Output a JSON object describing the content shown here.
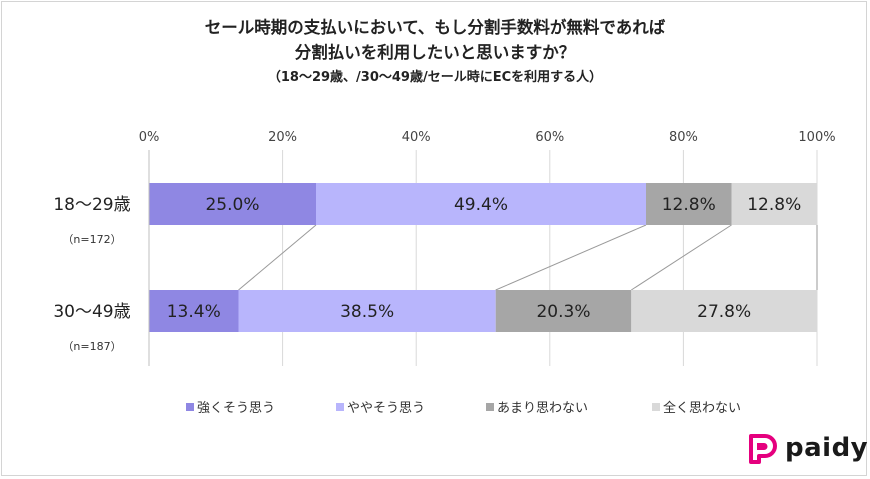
{
  "title": {
    "line1": "セール時期の支払いにおいて、もし分割手数料が無料であれば",
    "line2": "分割払いを利用したいと思いますか？",
    "line3": "（18～29歳、/30～49歳/セール時にECを利用する人）"
  },
  "chart_data": {
    "type": "bar",
    "orientation": "horizontal-stacked-100",
    "xlim": [
      0,
      100
    ],
    "x_ticks": [
      "0%",
      "20%",
      "40%",
      "60%",
      "80%",
      "100%"
    ],
    "categories": [
      {
        "label": "18～29歳",
        "n": "（n=172）"
      },
      {
        "label": "30～49歳",
        "n": "（n=187）"
      }
    ],
    "series": [
      {
        "name": "強くそう思う",
        "color": "#8f87e3",
        "values": [
          25.0,
          13.4
        ],
        "labels": [
          "25.0%",
          "13.4%"
        ]
      },
      {
        "name": "ややそう思う",
        "color": "#b8b5fc",
        "values": [
          49.4,
          38.5
        ],
        "labels": [
          "49.4%",
          "38.5%"
        ]
      },
      {
        "name": "あまり思わない",
        "color": "#a6a6a6",
        "values": [
          12.8,
          20.3
        ],
        "labels": [
          "12.8%",
          "20.3%"
        ]
      },
      {
        "name": "全く思わない",
        "color": "#d9d9d9",
        "values": [
          12.8,
          27.8
        ],
        "labels": [
          "12.8%",
          "27.8%"
        ]
      }
    ],
    "legend_position": "bottom",
    "grid": true
  },
  "brand": {
    "name": "paidy",
    "color": "#e5007e"
  }
}
